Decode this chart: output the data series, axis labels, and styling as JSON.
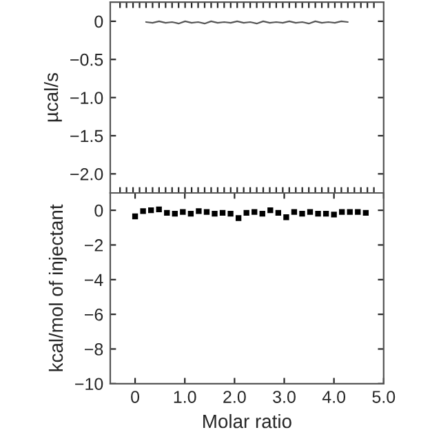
{
  "chart_data": [
    {
      "type": "line",
      "ylabel": "µcal/s",
      "categories": [
        null,
        null,
        null,
        null,
        null,
        null,
        null,
        null,
        null,
        null,
        null,
        null,
        null,
        null,
        null,
        null,
        null,
        null,
        null,
        null,
        null,
        null,
        null,
        null,
        null,
        null,
        null,
        null,
        null,
        null,
        null,
        null,
        null,
        null,
        null,
        null,
        null,
        null,
        null,
        null
      ],
      "series": [
        {
          "color": "#555555",
          "values": [
            null,
            null,
            null,
            null,
            -0.01,
            -0.02,
            0.0,
            -0.02,
            -0.01,
            -0.03,
            0.0,
            -0.02,
            -0.01,
            -0.03,
            0.0,
            -0.02,
            -0.01,
            -0.02,
            0.0,
            -0.02,
            -0.01,
            -0.03,
            0.0,
            -0.02,
            -0.01,
            -0.02,
            0.0,
            -0.02,
            -0.01,
            -0.03,
            0.0,
            -0.02,
            -0.01,
            -0.02,
            0.0,
            -0.01,
            null,
            null,
            null,
            null
          ]
        }
      ],
      "ylim": [
        -2.25,
        0.25
      ],
      "yticks": [
        {
          "value": -2.0,
          "label": "−2.0"
        },
        {
          "value": -1.5,
          "label": "−1.5"
        },
        {
          "value": -1.0,
          "label": "−1.0"
        },
        {
          "value": -0.5,
          "label": "−0.5"
        },
        0
      ],
      "tick_labels": "y",
      "marker": "none",
      "grid": false,
      "legend": false
    },
    {
      "type": "scatter",
      "xlabel": "Molar ratio",
      "ylabel": "kcal/mol of injectant",
      "x": [
        0.0,
        0.16,
        0.32,
        0.48,
        0.64,
        0.8,
        0.96,
        1.12,
        1.28,
        1.44,
        1.6,
        1.76,
        1.92,
        2.08,
        2.24,
        2.4,
        2.56,
        2.72,
        2.88,
        3.04,
        3.2,
        3.36,
        3.52,
        3.68,
        3.84,
        4.0,
        4.16,
        4.32,
        4.48,
        4.64
      ],
      "series": [
        {
          "color": "#000000",
          "values": [
            -0.35,
            -0.05,
            0.0,
            0.05,
            -0.15,
            -0.2,
            -0.1,
            -0.2,
            -0.05,
            -0.1,
            -0.2,
            -0.15,
            -0.2,
            -0.45,
            -0.15,
            -0.1,
            -0.2,
            0.0,
            -0.15,
            -0.4,
            -0.1,
            -0.2,
            -0.1,
            -0.2,
            -0.2,
            -0.25,
            -0.1,
            -0.1,
            -0.1,
            -0.15
          ]
        }
      ],
      "xlim": [
        -0.5,
        5.0
      ],
      "xticks": [
        0,
        {
          "value": 1,
          "label": "1.0"
        },
        {
          "value": 2,
          "label": "2.0"
        },
        {
          "value": 3,
          "label": "3.0"
        },
        {
          "value": 4,
          "label": "4.0"
        },
        {
          "value": 5,
          "label": "5.0"
        }
      ],
      "ylim": [
        -10,
        1
      ],
      "yticks": [
        {
          "value": -10,
          "label": "−10"
        },
        {
          "value": -8,
          "label": "−8"
        },
        {
          "value": -6,
          "label": "−6"
        },
        {
          "value": -4,
          "label": "−4"
        },
        {
          "value": -2,
          "label": "−2"
        },
        0
      ],
      "marker": "square",
      "grid": false,
      "legend": false
    }
  ]
}
